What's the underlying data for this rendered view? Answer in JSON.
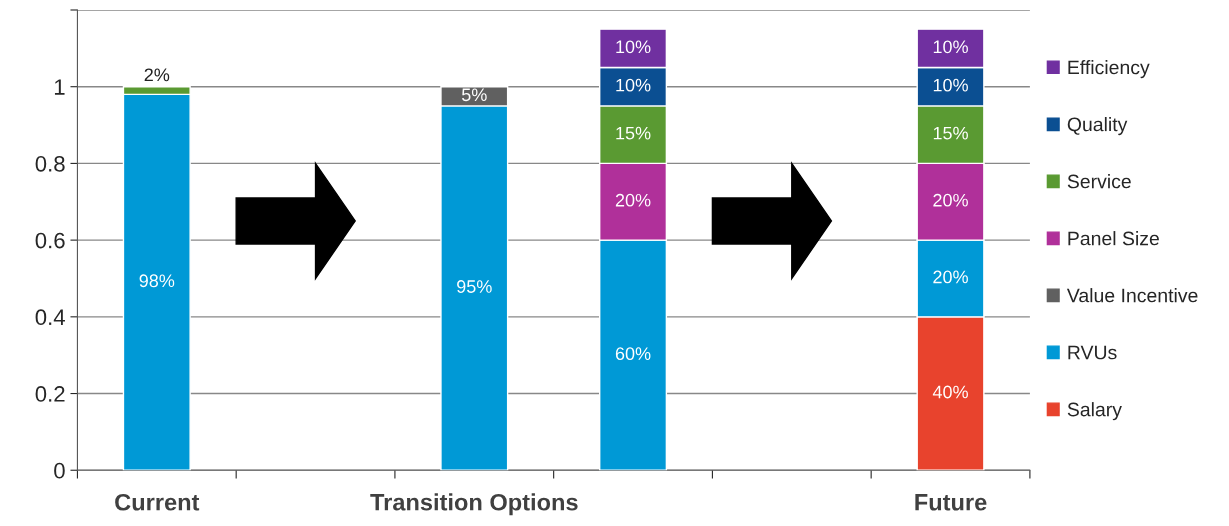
{
  "chart_data": {
    "type": "bar",
    "stacked": true,
    "categories": [
      "Current",
      null,
      "Transition Options",
      null,
      null,
      "Future"
    ],
    "series": [
      {
        "name": "Salary",
        "color": "#e8432d",
        "values": [
          null,
          null,
          null,
          null,
          null,
          0.4
        ],
        "value_labels": [
          null,
          null,
          null,
          null,
          null,
          "40%"
        ]
      },
      {
        "name": "RVUs",
        "color": "#0099d6",
        "values": [
          0.98,
          null,
          0.95,
          0.6,
          null,
          0.2
        ],
        "value_labels": [
          "98%",
          null,
          "95%",
          "60%",
          null,
          "20%"
        ]
      },
      {
        "name": "Value Incentive",
        "color": "#606060",
        "values": [
          null,
          null,
          0.05,
          null,
          null,
          null
        ],
        "value_labels": [
          null,
          null,
          "5%",
          null,
          null,
          null
        ]
      },
      {
        "name": "Panel Size",
        "color": "#b0309a",
        "values": [
          null,
          null,
          null,
          0.2,
          null,
          0.2
        ],
        "value_labels": [
          null,
          null,
          null,
          "20%",
          null,
          "20%"
        ]
      },
      {
        "name": "Service",
        "color": "#5a9a32",
        "values": [
          0.02,
          null,
          null,
          0.15,
          null,
          0.15
        ],
        "value_labels": [
          "2%",
          null,
          null,
          "15%",
          null,
          "15%"
        ]
      },
      {
        "name": "Quality",
        "color": "#0b4f92",
        "values": [
          null,
          null,
          null,
          0.1,
          null,
          0.1
        ],
        "value_labels": [
          null,
          null,
          null,
          "10%",
          null,
          "10%"
        ]
      },
      {
        "name": "Efficiency",
        "color": "#7030a0",
        "values": [
          null,
          null,
          null,
          0.1,
          null,
          0.1
        ],
        "value_labels": [
          null,
          null,
          null,
          "10%",
          null,
          "10%"
        ]
      }
    ],
    "ylim": [
      0,
      1.2
    ],
    "yticks": [
      0,
      0.2,
      0.4,
      0.6,
      0.8,
      1,
      {
        "value": 1.2,
        "label": null
      }
    ],
    "grid": "y",
    "legend": "right"
  }
}
